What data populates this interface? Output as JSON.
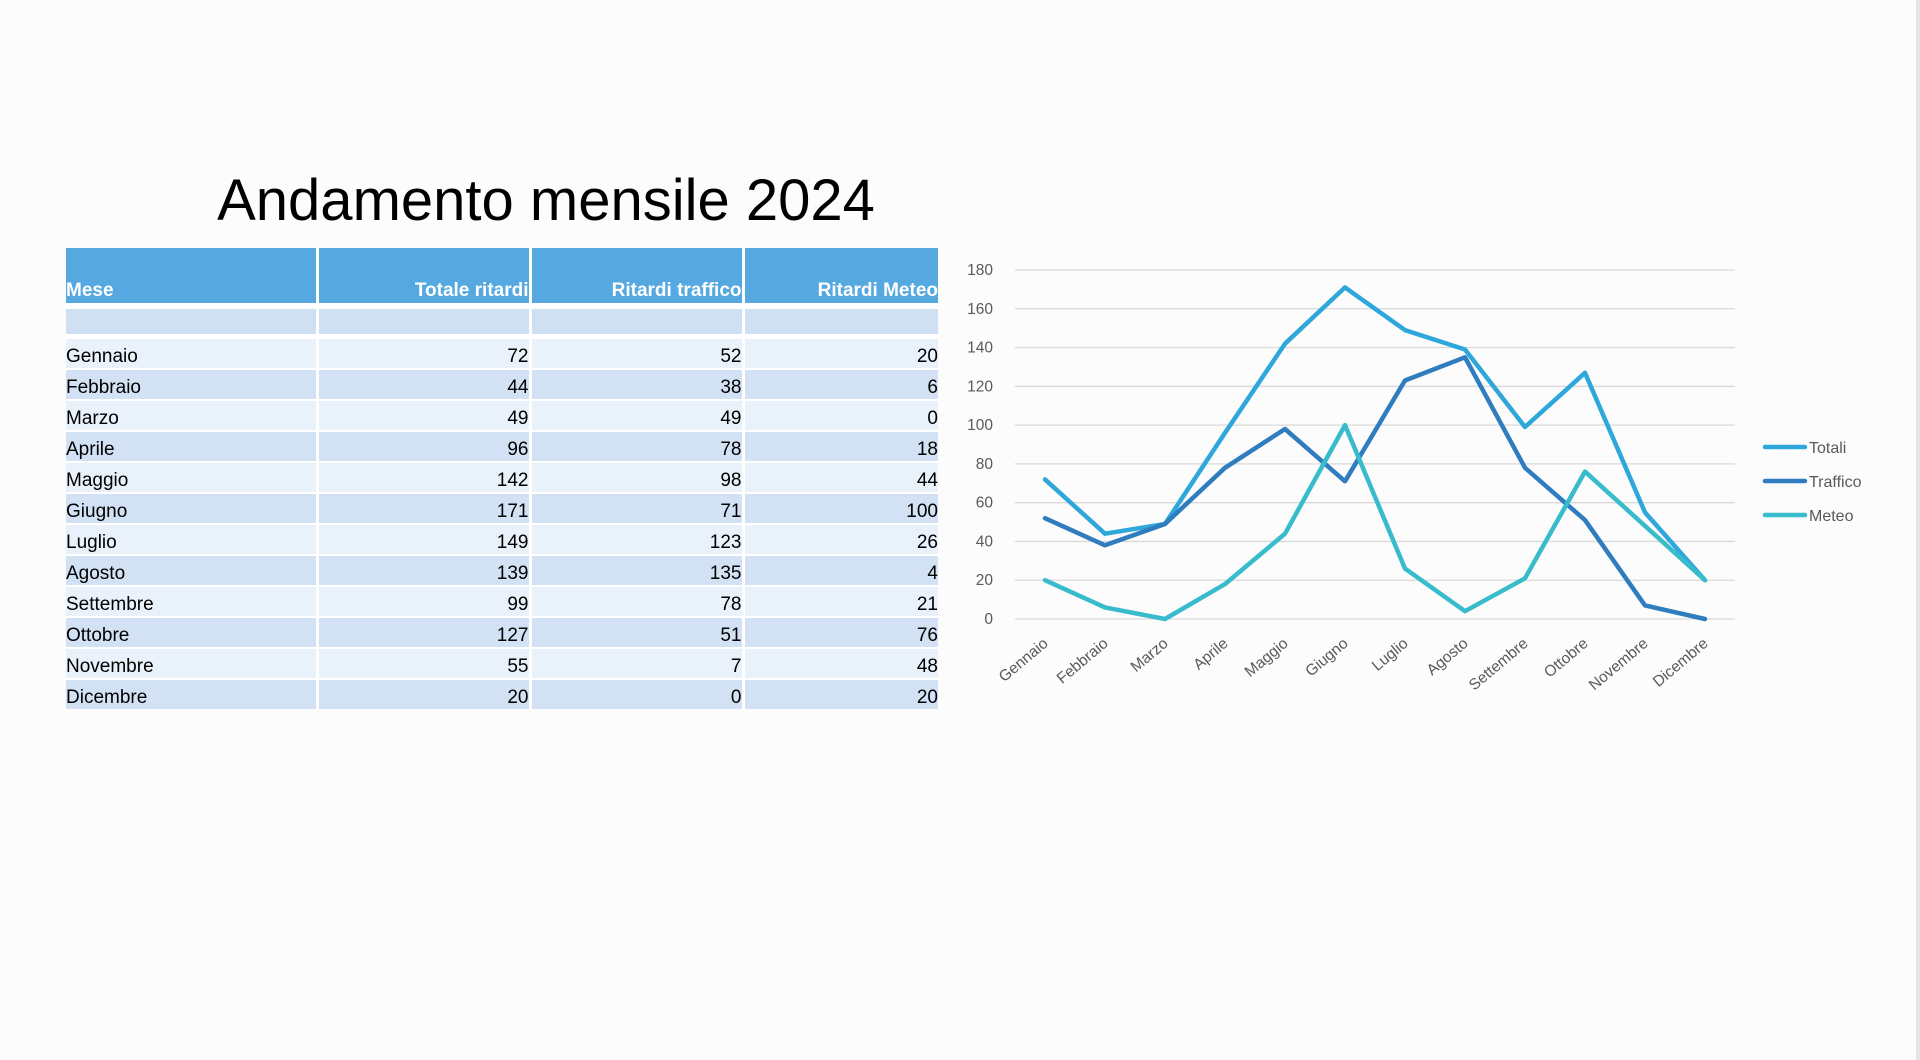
{
  "title": "Andamento mensile 2024",
  "table": {
    "headers": [
      "Mese",
      "Totale ritardi",
      "Ritardi traffico",
      "Ritardi Meteo"
    ],
    "rows": [
      [
        "Gennaio",
        "72",
        "52",
        "20"
      ],
      [
        "Febbraio",
        "44",
        "38",
        "6"
      ],
      [
        "Marzo",
        "49",
        "49",
        "0"
      ],
      [
        "Aprile",
        "96",
        "78",
        "18"
      ],
      [
        "Maggio",
        "142",
        "98",
        "44"
      ],
      [
        "Giugno",
        "171",
        "71",
        "100"
      ],
      [
        "Luglio",
        "149",
        "123",
        "26"
      ],
      [
        "Agosto",
        "139",
        "135",
        "4"
      ],
      [
        "Settembre",
        "99",
        "78",
        "21"
      ],
      [
        "Ottobre",
        "127",
        "51",
        "76"
      ],
      [
        "Novembre",
        "55",
        "7",
        "48"
      ],
      [
        "Dicembre",
        "20",
        "0",
        "20"
      ]
    ]
  },
  "chart_data": {
    "type": "line",
    "categories": [
      "Gennaio",
      "Febbraio",
      "Marzo",
      "Aprile",
      "Maggio",
      "Giugno",
      "Luglio",
      "Agosto",
      "Settembre",
      "Ottobre",
      "Novembre",
      "Dicembre"
    ],
    "series": [
      {
        "name": "Totali",
        "color": "#2ea7db",
        "values": [
          72,
          44,
          49,
          96,
          142,
          171,
          149,
          139,
          99,
          127,
          55,
          20
        ]
      },
      {
        "name": "Traffico",
        "color": "#2f7dbf",
        "values": [
          52,
          38,
          49,
          78,
          98,
          71,
          123,
          135,
          78,
          51,
          7,
          0
        ]
      },
      {
        "name": "Meteo",
        "color": "#38bccb",
        "values": [
          20,
          6,
          0,
          18,
          44,
          100,
          26,
          4,
          21,
          76,
          48,
          20
        ]
      }
    ],
    "yticks": [
      "0",
      "20",
      "40",
      "60",
      "80",
      "100",
      "120",
      "140",
      "160",
      "180"
    ],
    "ylim": [
      0,
      180
    ],
    "grid": true,
    "legend_position": "right"
  }
}
